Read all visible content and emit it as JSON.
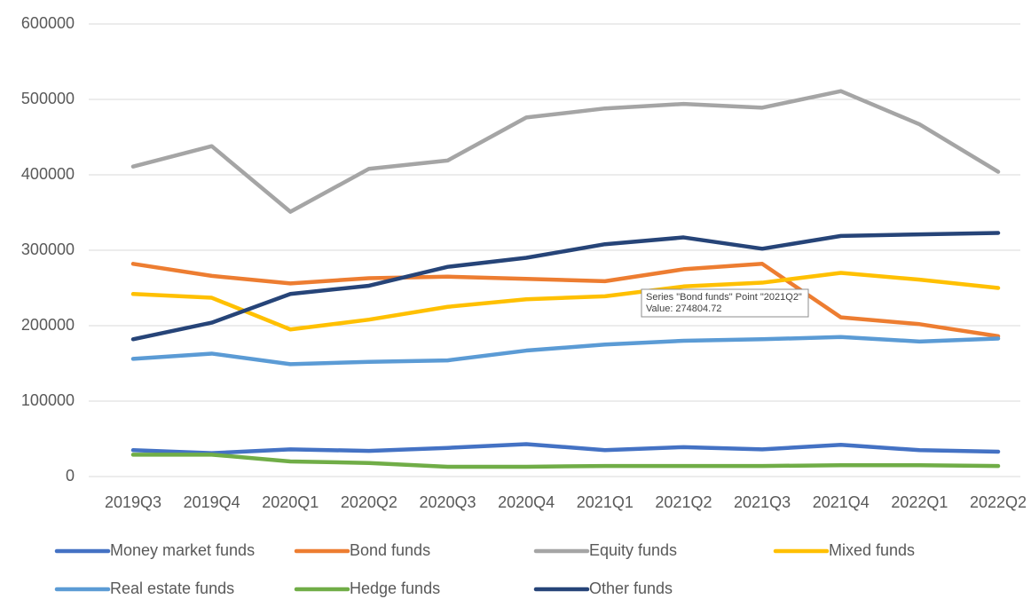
{
  "chart_data": {
    "type": "line",
    "categories": [
      "2019Q3",
      "2019Q4",
      "2020Q1",
      "2020Q2",
      "2020Q3",
      "2020Q4",
      "2021Q1",
      "2021Q2",
      "2021Q3",
      "2021Q4",
      "2022Q1",
      "2022Q2"
    ],
    "series": [
      {
        "name": "Money market funds",
        "color": "#4472c4",
        "values": [
          35000,
          31000,
          36000,
          34000,
          38000,
          43000,
          35000,
          39000,
          36000,
          42000,
          35000,
          33000
        ]
      },
      {
        "name": "Bond funds",
        "color": "#ed7d31",
        "values": [
          282000,
          266000,
          256000,
          263000,
          265000,
          262000,
          259000,
          274804.72,
          282000,
          211000,
          202000,
          186000
        ]
      },
      {
        "name": "Equity funds",
        "color": "#a5a5a5",
        "values": [
          411000,
          438000,
          351000,
          408000,
          419000,
          476000,
          488000,
          494000,
          489000,
          511000,
          467000,
          404000
        ]
      },
      {
        "name": "Mixed funds",
        "color": "#ffc000",
        "values": [
          242000,
          237000,
          195000,
          208000,
          225000,
          235000,
          239000,
          252000,
          257000,
          270000,
          261000,
          250000
        ]
      },
      {
        "name": "Real estate funds",
        "color": "#5b9bd5",
        "values": [
          156000,
          163000,
          149000,
          152000,
          154000,
          167000,
          175000,
          180000,
          182000,
          185000,
          179000,
          183000
        ]
      },
      {
        "name": "Hedge funds",
        "color": "#70ad47",
        "values": [
          29000,
          29000,
          20000,
          18000,
          13000,
          13000,
          14000,
          14000,
          14000,
          15000,
          15000,
          14000
        ]
      },
      {
        "name": "Other funds",
        "color": "#264478",
        "values": [
          182000,
          204000,
          242000,
          253000,
          278000,
          290000,
          308000,
          317000,
          302000,
          319000,
          321000,
          323000
        ]
      }
    ],
    "ylim": [
      0,
      600000
    ],
    "yticks": [
      0,
      100000,
      200000,
      300000,
      400000,
      500000,
      600000
    ],
    "grid": true,
    "legend": "bottom",
    "tooltip": [
      "Series \"Bond funds\" Point \"2021Q2\"",
      "Value: 274804.72"
    ]
  }
}
